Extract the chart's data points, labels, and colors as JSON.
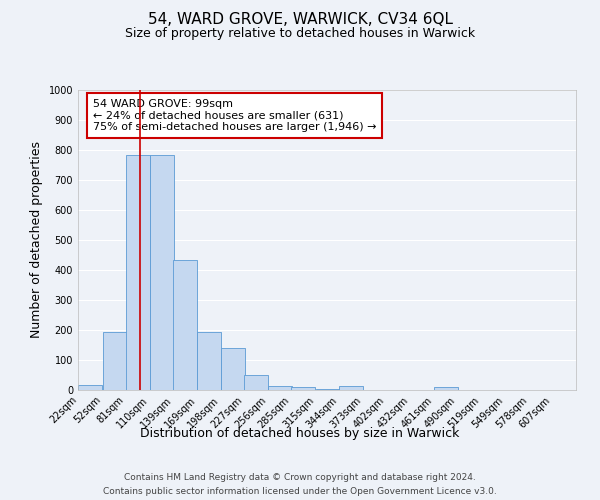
{
  "title": "54, WARD GROVE, WARWICK, CV34 6QL",
  "subtitle": "Size of property relative to detached houses in Warwick",
  "xlabel": "Distribution of detached houses by size in Warwick",
  "ylabel": "Number of detached properties",
  "bin_labels": [
    "22sqm",
    "52sqm",
    "81sqm",
    "110sqm",
    "139sqm",
    "169sqm",
    "198sqm",
    "227sqm",
    "256sqm",
    "285sqm",
    "315sqm",
    "344sqm",
    "373sqm",
    "402sqm",
    "432sqm",
    "461sqm",
    "490sqm",
    "519sqm",
    "549sqm",
    "578sqm",
    "607sqm"
  ],
  "bin_edges": [
    22,
    52,
    81,
    110,
    139,
    169,
    198,
    227,
    256,
    285,
    315,
    344,
    373,
    402,
    432,
    461,
    490,
    519,
    549,
    578,
    607
  ],
  "bar_heights": [
    18,
    195,
    783,
    785,
    435,
    192,
    140,
    50,
    15,
    10,
    5,
    12,
    0,
    0,
    0,
    10,
    0,
    0,
    0,
    0,
    0
  ],
  "bar_color": "#c5d8f0",
  "bar_edge_color": "#5b9bd5",
  "ylim": [
    0,
    1000
  ],
  "yticks": [
    0,
    100,
    200,
    300,
    400,
    500,
    600,
    700,
    800,
    900,
    1000
  ],
  "property_line_x": 99,
  "red_line_color": "#cc0000",
  "annotation_line1": "54 WARD GROVE: 99sqm",
  "annotation_line2": "← 24% of detached houses are smaller (631)",
  "annotation_line3": "75% of semi-detached houses are larger (1,946) →",
  "annotation_box_color": "#ffffff",
  "annotation_box_edge": "#cc0000",
  "footer_line1": "Contains HM Land Registry data © Crown copyright and database right 2024.",
  "footer_line2": "Contains public sector information licensed under the Open Government Licence v3.0.",
  "background_color": "#eef2f8",
  "grid_color": "#ffffff",
  "title_fontsize": 11,
  "subtitle_fontsize": 9,
  "axis_label_fontsize": 9,
  "tick_fontsize": 7,
  "annotation_fontsize": 8,
  "footer_fontsize": 6.5
}
